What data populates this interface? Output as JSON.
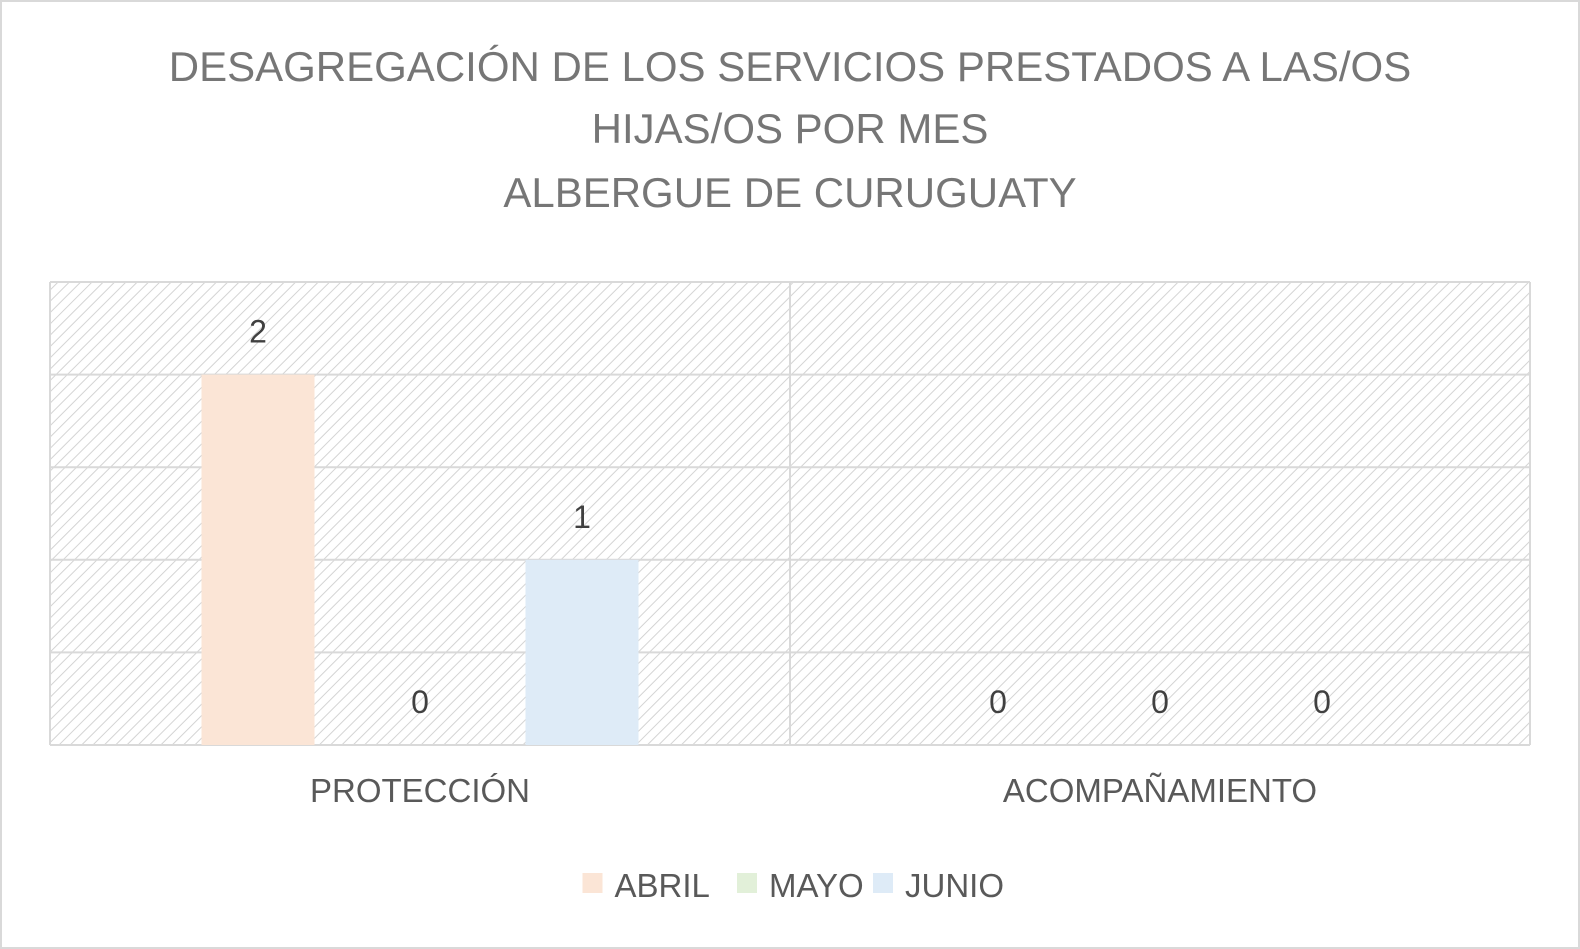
{
  "chart_data": {
    "type": "bar",
    "title": [
      "DESAGREGACIÓN DE LOS SERVICIOS PRESTADOS A LAS/OS",
      "HIJAS/OS POR MES",
      "ALBERGUE DE CURUGUATY"
    ],
    "categories": [
      "PROTECCIÓN",
      "ACOMPAÑAMIENTO"
    ],
    "series": [
      {
        "name": "ABRIL",
        "values": [
          2,
          0
        ],
        "color": "#fbe5d6"
      },
      {
        "name": "MAYO",
        "values": [
          0,
          0
        ],
        "color": "#e2f0d9"
      },
      {
        "name": "JUNIO",
        "values": [
          1,
          0
        ],
        "color": "#deebf7"
      }
    ],
    "ylim": [
      0,
      2.5
    ],
    "grid": true,
    "legend": "bottom",
    "data_labels": true
  }
}
